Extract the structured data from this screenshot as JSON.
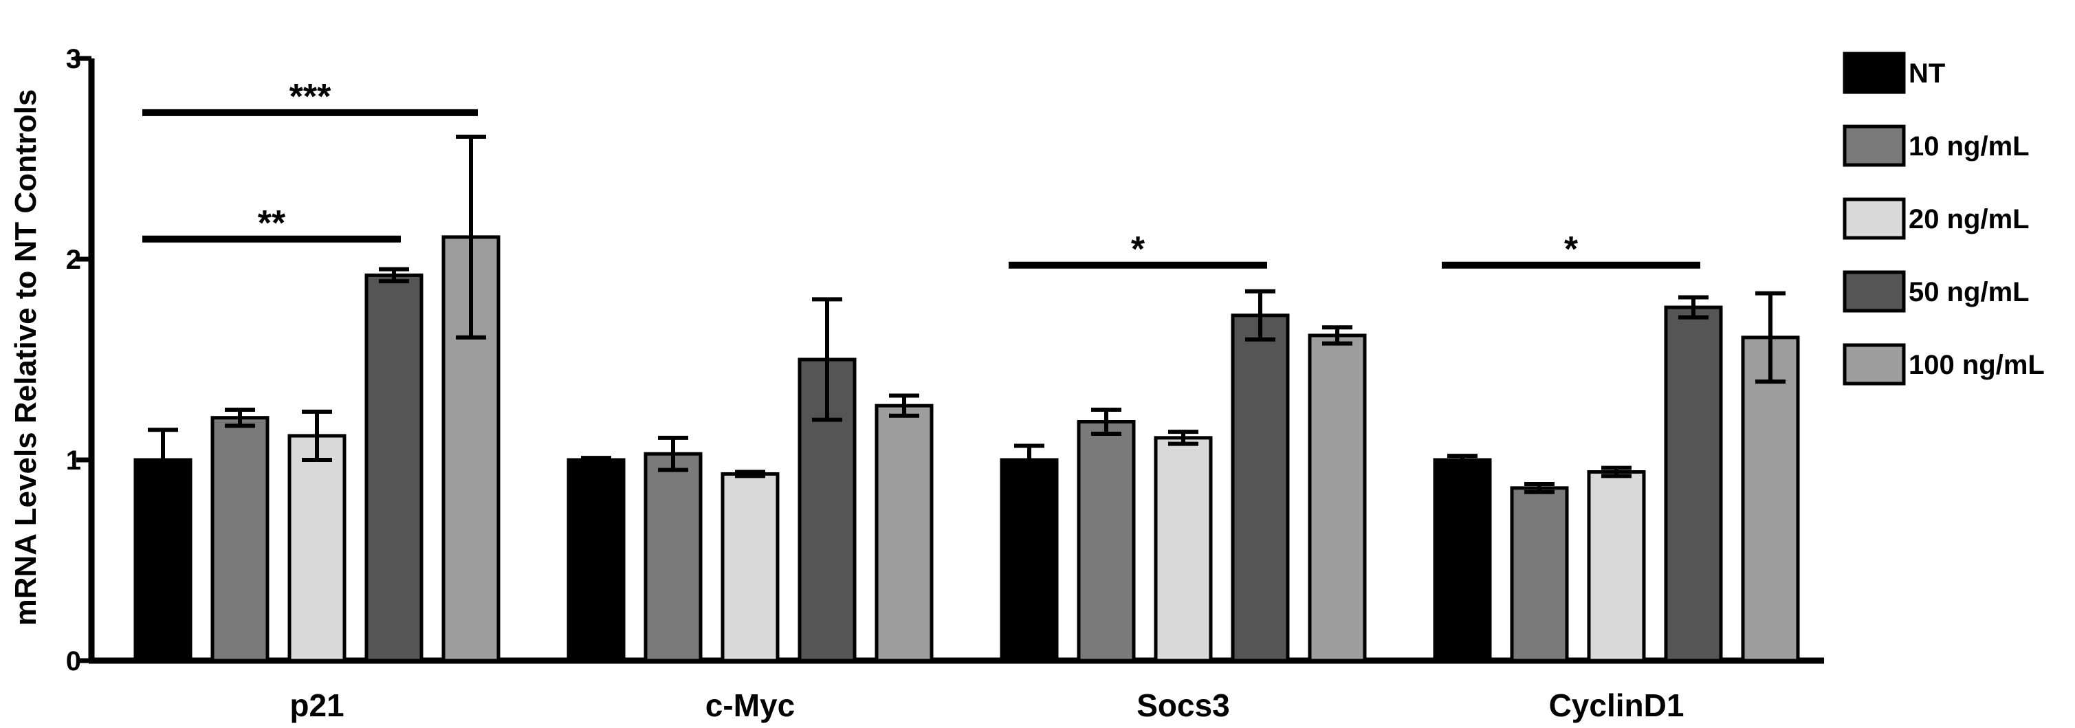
{
  "chart_data": {
    "type": "bar",
    "title": "",
    "xlabel": "",
    "ylabel": "mRNA Levels Relative to NT Controls",
    "ylim": [
      0,
      3
    ],
    "yticks": [
      0,
      1,
      2,
      3
    ],
    "grid": false,
    "legend_position": "right",
    "categories": [
      "p21",
      "c-Myc",
      "Socs3",
      "CyclinD1"
    ],
    "series": [
      {
        "name": "NT",
        "color": "#000000",
        "values": [
          1.0,
          1.0,
          1.0,
          1.0
        ],
        "errors": [
          0.15,
          0.01,
          0.07,
          0.02
        ]
      },
      {
        "name": "10 ng/mL",
        "color": "#7a7a7a",
        "values": [
          1.21,
          1.03,
          1.19,
          0.86
        ],
        "errors": [
          0.04,
          0.08,
          0.06,
          0.02
        ]
      },
      {
        "name": "20 ng/mL",
        "color": "#d9d9d9",
        "values": [
          1.12,
          0.93,
          1.11,
          0.94
        ],
        "errors": [
          0.12,
          0.01,
          0.03,
          0.02
        ]
      },
      {
        "name": "50 ng/mL",
        "color": "#555555",
        "values": [
          1.92,
          1.5,
          1.72,
          1.76
        ],
        "errors": [
          0.03,
          0.3,
          0.12,
          0.05
        ]
      },
      {
        "name": "100 ng/mL",
        "color": "#9d9d9d",
        "values": [
          2.11,
          1.27,
          1.62,
          1.61
        ],
        "errors": [
          0.5,
          0.05,
          0.04,
          0.22
        ]
      }
    ],
    "significance": [
      {
        "label": "**",
        "category": "p21",
        "from_series": 0,
        "to_series": 3,
        "y": 2.1
      },
      {
        "label": "***",
        "category": "p21",
        "from_series": 0,
        "to_series": 4,
        "y": 2.73
      },
      {
        "label": "*",
        "category": "Socs3",
        "from_series": 0,
        "to_series": 3,
        "y": 1.97
      },
      {
        "label": "*",
        "category": "CyclinD1",
        "from_series": 0,
        "to_series": 3,
        "y": 1.97
      }
    ]
  }
}
